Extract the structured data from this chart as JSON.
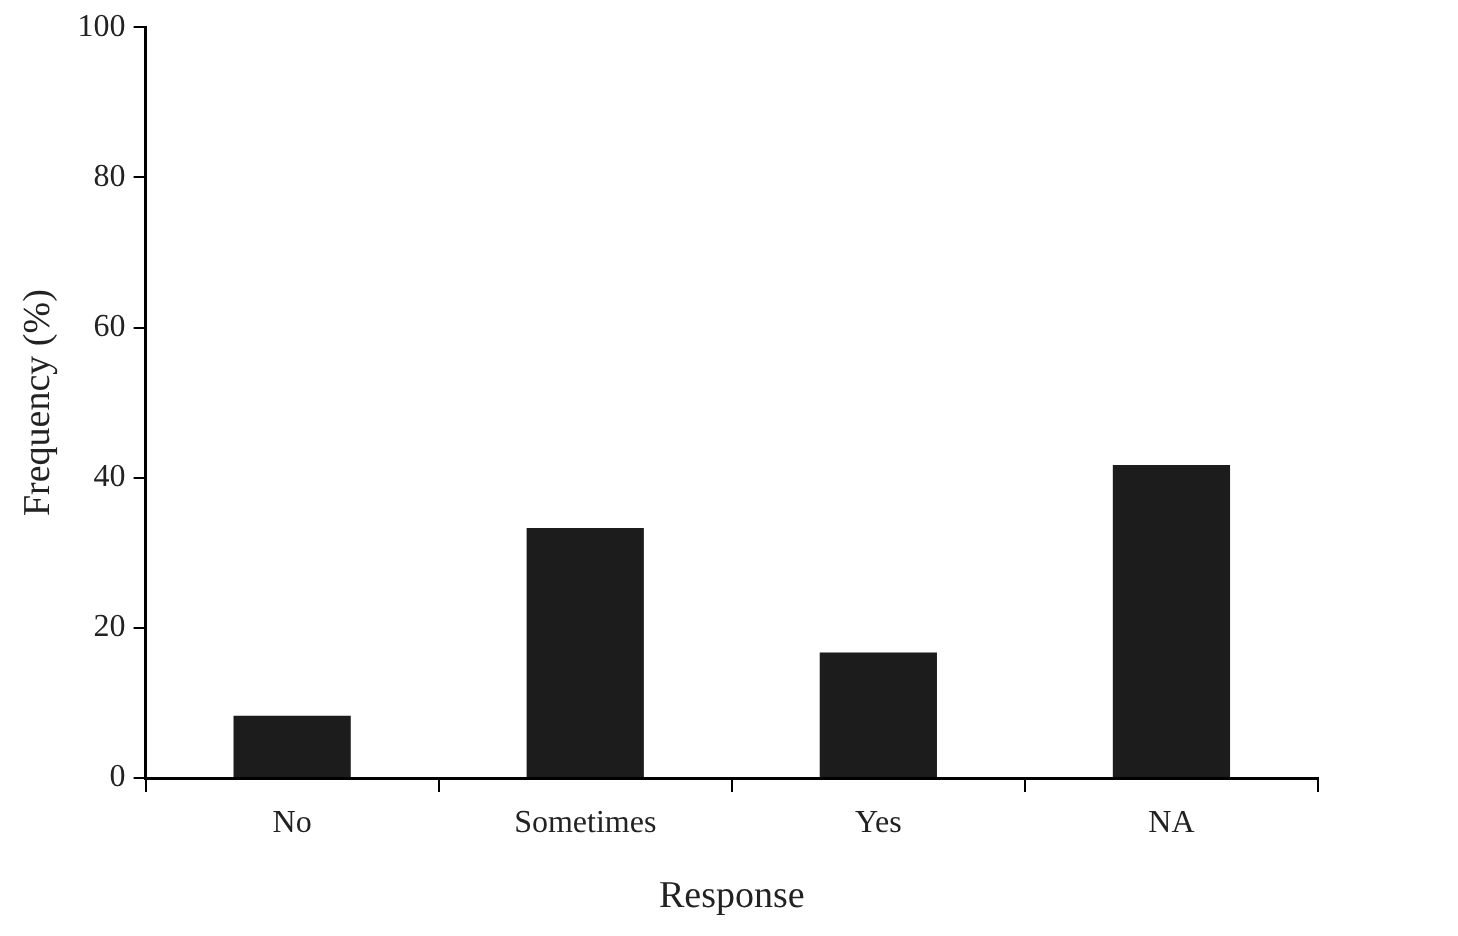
{
  "chart_data": {
    "type": "bar",
    "xlabel": "Response",
    "ylabel": "Frequency (%)",
    "categories": [
      "No",
      "Sometimes",
      "Yes",
      "NA"
    ],
    "values": [
      8.3,
      33.3,
      16.7,
      41.7
    ],
    "color": "#1c1c1c",
    "ylim": [
      0,
      100
    ],
    "yticks": [
      0,
      20,
      40,
      60,
      80,
      100
    ],
    "grid": false,
    "legend": false
  }
}
